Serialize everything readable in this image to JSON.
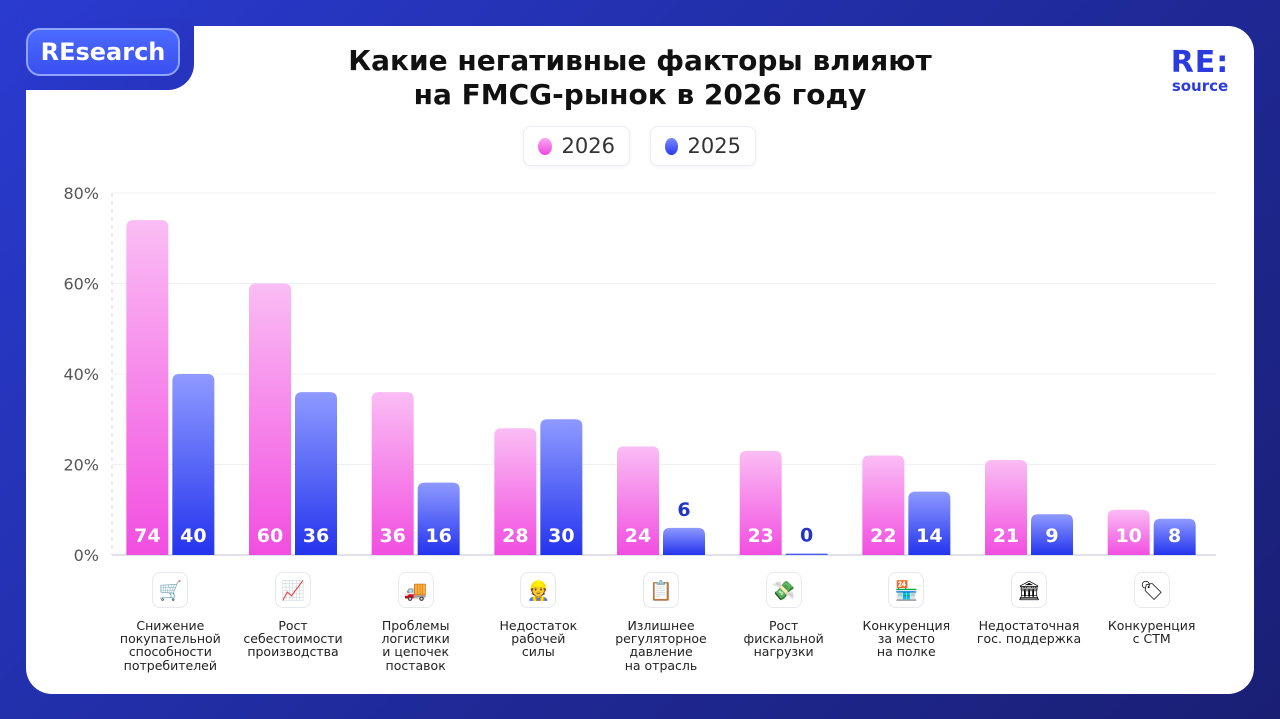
{
  "badge": "REsearch",
  "title_line1": "Какие негативные факторы влияют",
  "title_line2": "на FMCG-рынок в 2026 году",
  "logo": {
    "line1": "RE:",
    "line2": "source"
  },
  "colors": {
    "series_2026_top": "#f9b4f2",
    "series_2026_bottom": "#f24ee0",
    "series_2025_top": "#8a97ff",
    "series_2025_bottom": "#2434ee",
    "label_blue": "#2434c8"
  },
  "chart_data": {
    "type": "bar",
    "title": "Какие негативные факторы влияют на FMCG-рынок в 2026 году",
    "categories": [
      "Снижение\nпокупательной\nспособности\nпотребителей",
      "Рост\nсебестоимости\nпроизводства",
      "Проблемы\nлогистики\nи цепочек\nпоставок",
      "Недостаток\nрабочей\nсилы",
      "Излишнее\nрегуляторное\nдавление\nна отрасль",
      "Рост\nфискальной\nнагрузки",
      "Конкуренция\nза место\nна полке",
      "Недостаточная\nгос. поддержка",
      "Конкуренция\nс СТМ"
    ],
    "category_icons": [
      "shopping-cart-icon",
      "chart-up-icon",
      "delivery-truck-icon",
      "worker-icon",
      "clipboard-icon",
      "money-wings-icon",
      "store-24-icon",
      "government-building-icon",
      "price-tag-icon"
    ],
    "series": [
      {
        "name": "2026",
        "values": [
          74,
          60,
          36,
          28,
          24,
          23,
          22,
          21,
          10
        ]
      },
      {
        "name": "2025",
        "values": [
          40,
          36,
          16,
          30,
          6,
          0,
          14,
          9,
          8
        ]
      }
    ],
    "ylim": [
      0,
      80
    ],
    "yticks": [
      "0%",
      "20%",
      "40%",
      "60%",
      "80%"
    ],
    "ytick_values": [
      0,
      20,
      40,
      60,
      80
    ],
    "grid": true,
    "legend_position": "top-center"
  }
}
